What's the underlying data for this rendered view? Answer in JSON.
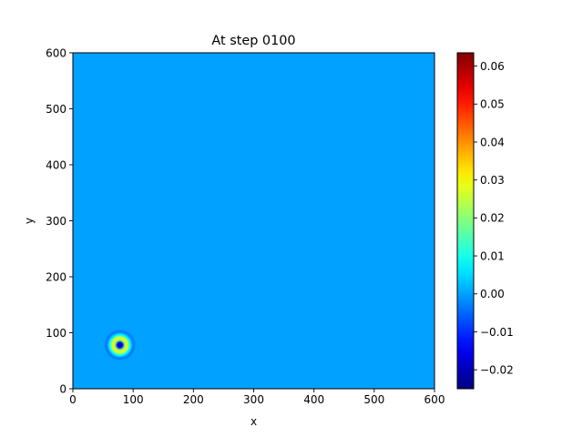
{
  "chart_data": {
    "type": "heatmap",
    "title": "At step 0100",
    "xlabel": "x",
    "ylabel": "y",
    "xlim": [
      0,
      600
    ],
    "ylim": [
      0,
      600
    ],
    "x_ticks": [
      0,
      100,
      200,
      300,
      400,
      500,
      600
    ],
    "y_ticks": [
      0,
      100,
      200,
      300,
      400,
      500,
      600
    ],
    "field": {
      "background_value": 0.0,
      "feature": {
        "shape": "concentric-rings",
        "center": [
          78,
          78
        ],
        "rings": [
          {
            "r": 0,
            "value": -0.02
          },
          {
            "r": 4,
            "value": -0.015
          },
          {
            "r": 8,
            "value": 0.02
          },
          {
            "r": 12,
            "value": 0.03
          },
          {
            "r": 17,
            "value": 0.008
          },
          {
            "r": 22,
            "value": -0.004
          },
          {
            "r": 27,
            "value": 0.0
          }
        ]
      }
    },
    "colormap": "jet",
    "colorbar": {
      "vmin": -0.025,
      "vmax": 0.0635,
      "ticks": [
        "−0.02",
        "−0.01",
        "0.00",
        "0.01",
        "0.02",
        "0.03",
        "0.04",
        "0.05",
        "0.06"
      ],
      "tick_values": [
        -0.02,
        -0.01,
        0.0,
        0.01,
        0.02,
        0.03,
        0.04,
        0.05,
        0.06
      ]
    },
    "grid": false
  }
}
